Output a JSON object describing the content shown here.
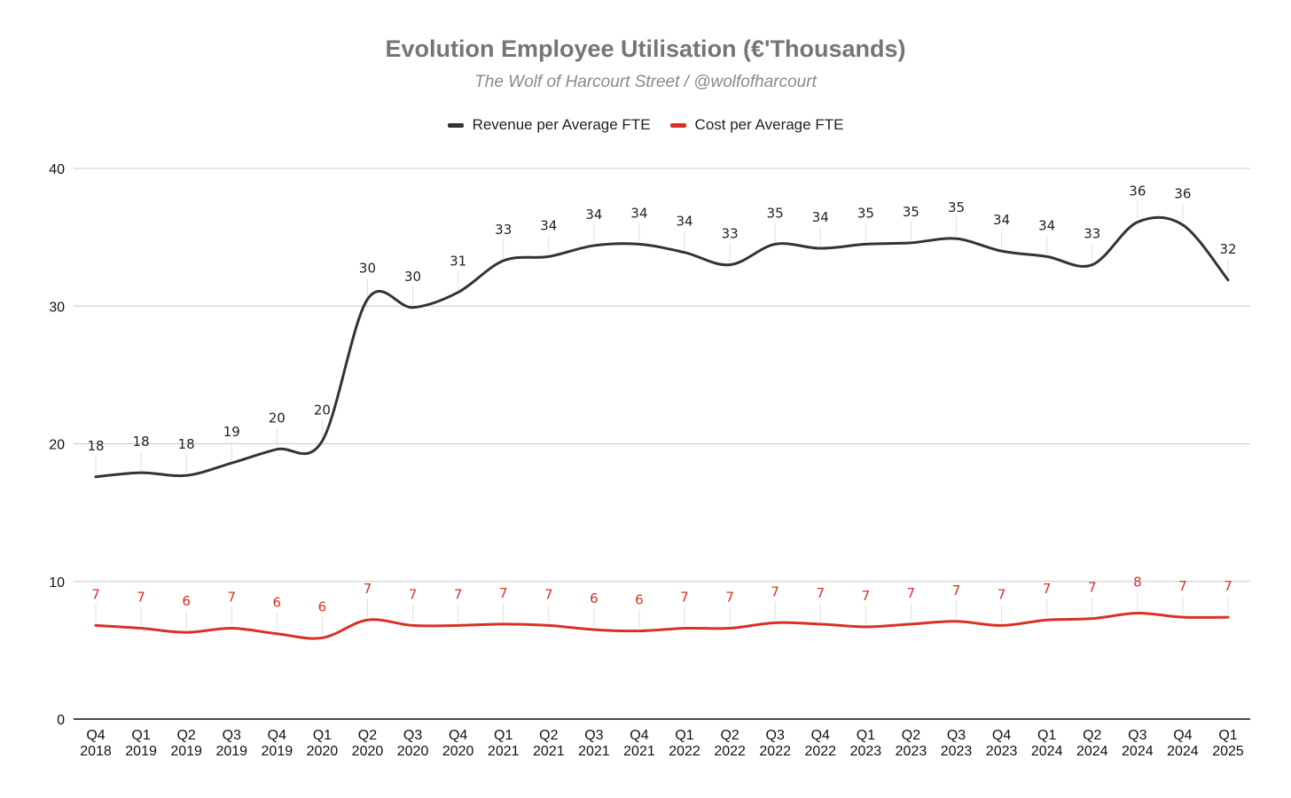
{
  "chart_data": {
    "type": "line",
    "title": "Evolution Employee Utilisation (€'Thousands)",
    "subtitle": "The Wolf of Harcourt Street / @wolfofharcourt",
    "xlabel": "",
    "ylabel": "",
    "ylim": [
      0,
      40
    ],
    "yticks": [
      0,
      10,
      20,
      30,
      40
    ],
    "grid": true,
    "legend_position": "top",
    "categories": [
      [
        "Q4",
        "2018"
      ],
      [
        "Q1",
        "2019"
      ],
      [
        "Q2",
        "2019"
      ],
      [
        "Q3",
        "2019"
      ],
      [
        "Q4",
        "2019"
      ],
      [
        "Q1",
        "2020"
      ],
      [
        "Q2",
        "2020"
      ],
      [
        "Q3",
        "2020"
      ],
      [
        "Q4",
        "2020"
      ],
      [
        "Q1",
        "2021"
      ],
      [
        "Q2",
        "2021"
      ],
      [
        "Q3",
        "2021"
      ],
      [
        "Q4",
        "2021"
      ],
      [
        "Q1",
        "2022"
      ],
      [
        "Q2",
        "2022"
      ],
      [
        "Q3",
        "2022"
      ],
      [
        "Q4",
        "2022"
      ],
      [
        "Q1",
        "2023"
      ],
      [
        "Q2",
        "2023"
      ],
      [
        "Q3",
        "2023"
      ],
      [
        "Q4",
        "2023"
      ],
      [
        "Q1",
        "2024"
      ],
      [
        "Q2",
        "2024"
      ],
      [
        "Q3",
        "2024"
      ],
      [
        "Q4",
        "2024"
      ],
      [
        "Q1",
        "2025"
      ]
    ],
    "series": [
      {
        "name": "Revenue per Average FTE",
        "color": "#333333",
        "values": [
          17.6,
          17.9,
          17.7,
          18.6,
          19.6,
          20.2,
          30.5,
          29.9,
          31.0,
          33.3,
          33.6,
          34.4,
          34.5,
          33.9,
          33.0,
          34.5,
          34.2,
          34.5,
          34.6,
          34.9,
          34.0,
          33.6,
          33.0,
          36.1,
          35.9,
          31.9
        ],
        "labels": [
          "18",
          "18",
          "18",
          "19",
          "20",
          "20",
          "30",
          "30",
          "31",
          "33",
          "34",
          "34",
          "34",
          "34",
          "33",
          "35",
          "34",
          "35",
          "35",
          "35",
          "34",
          "34",
          "33",
          "36",
          "36",
          "32"
        ]
      },
      {
        "name": "Cost per Average FTE",
        "color": "#d93025",
        "values": [
          6.8,
          6.6,
          6.3,
          6.6,
          6.2,
          5.9,
          7.2,
          6.8,
          6.8,
          6.9,
          6.8,
          6.5,
          6.4,
          6.6,
          6.6,
          7.0,
          6.9,
          6.7,
          6.9,
          7.1,
          6.8,
          7.2,
          7.3,
          7.7,
          7.4,
          7.4
        ],
        "labels": [
          "7",
          "7",
          "6",
          "7",
          "6",
          "6",
          "7",
          "7",
          "7",
          "7",
          "7",
          "6",
          "6",
          "7",
          "7",
          "7",
          "7",
          "7",
          "7",
          "7",
          "7",
          "7",
          "7",
          "8",
          "7",
          "7"
        ]
      }
    ]
  }
}
